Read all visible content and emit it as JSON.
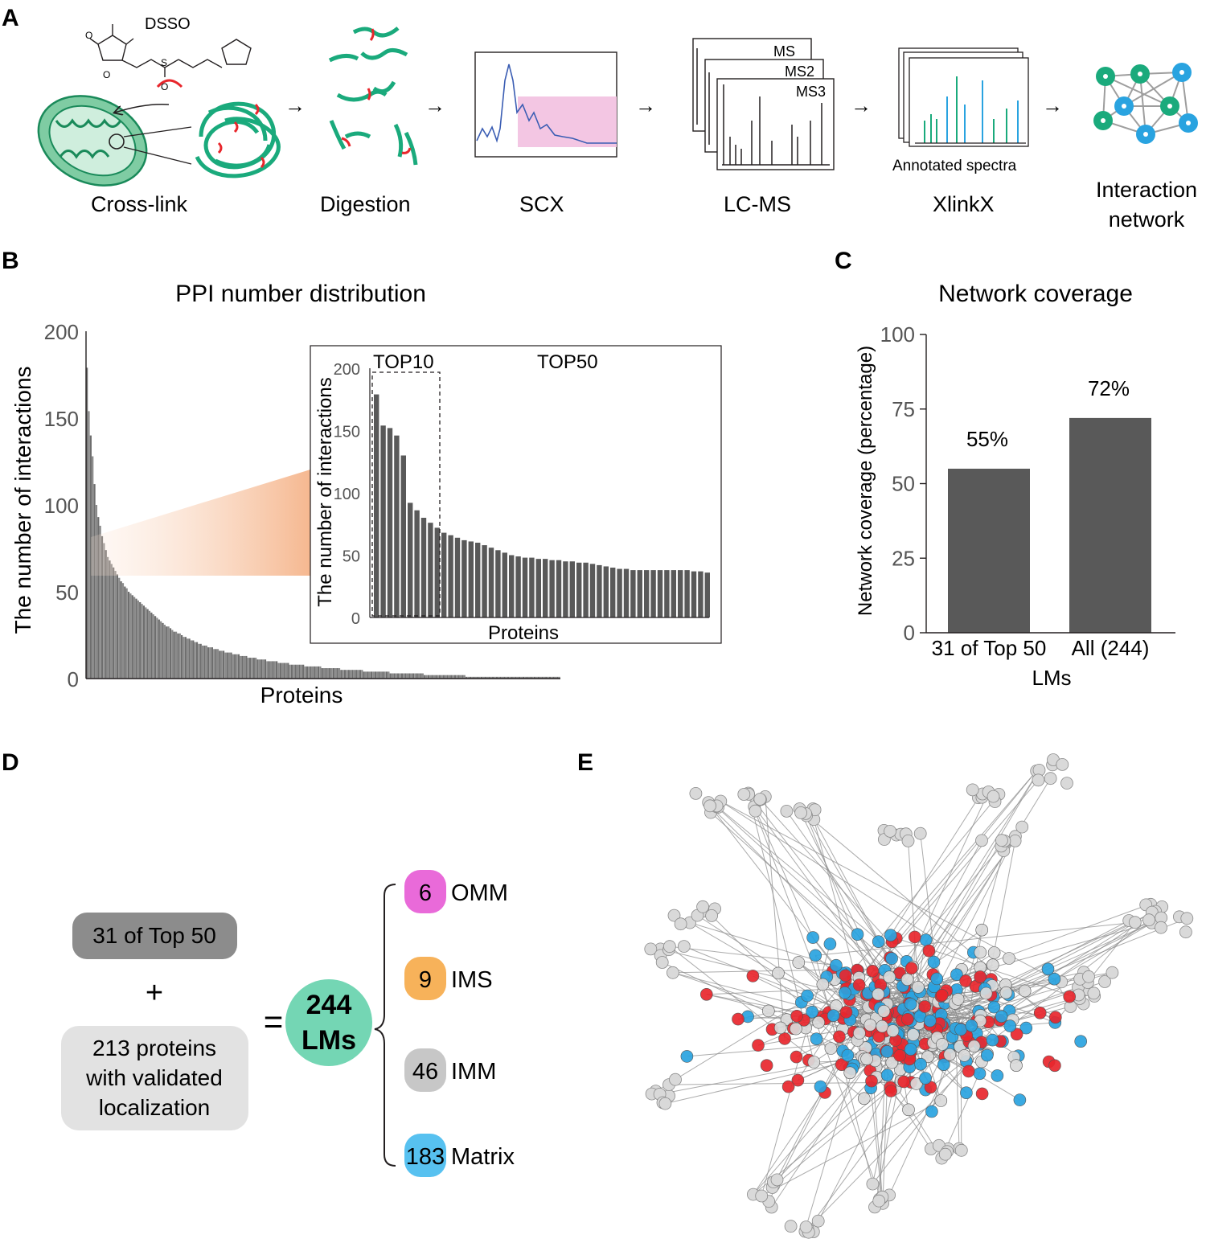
{
  "panels": {
    "a": "A",
    "b": "B",
    "c": "C",
    "d": "D",
    "e": "E"
  },
  "workflow": {
    "reagent": "DSSO",
    "steps": [
      "Cross-link",
      "Digestion",
      "SCX",
      "LC-MS",
      "XlinkX"
    ],
    "network_line1": "Interaction",
    "network_line2": "network",
    "ms_labels": [
      "MS",
      "MS2",
      "MS3"
    ],
    "annotated": "Annotated spectra",
    "arrow": "→"
  },
  "colors": {
    "green": "#1aaa7c",
    "blue": "#29a3e0",
    "red": "#e8262c",
    "grey": "#d9d9d9",
    "bar": "#595959",
    "pink": "#f3c6e3",
    "omm": "#e96ad9",
    "ims": "#f7b25a",
    "imm": "#c7c7c7",
    "matrix": "#57c1f0",
    "lm": "#74d6b4"
  },
  "chart_data": [
    {
      "type": "bar",
      "title": "PPI number distribution",
      "xlabel": "Proteins",
      "ylabel": "The number of interactions",
      "ylim": [
        0,
        200
      ],
      "yticks": [
        "0",
        "50",
        "100",
        "150",
        "200"
      ],
      "values": [
        179,
        154,
        140,
        128,
        112,
        100,
        93,
        88,
        82,
        78,
        74,
        70,
        68,
        66,
        64,
        62,
        60,
        58,
        56,
        55,
        53,
        52,
        50,
        49,
        48,
        47,
        46,
        45,
        44,
        43,
        42,
        41,
        40,
        39,
        38,
        37,
        36,
        35,
        34,
        33,
        32,
        31,
        30,
        30,
        29,
        28,
        27,
        27,
        26,
        26,
        25,
        24,
        24,
        23,
        23,
        22,
        22,
        21,
        21,
        20,
        20,
        19,
        19,
        19,
        18,
        18,
        18,
        17,
        17,
        17,
        16,
        16,
        16,
        15,
        15,
        15,
        15,
        14,
        14,
        14,
        14,
        13,
        13,
        13,
        13,
        12,
        12,
        12,
        12,
        12,
        11,
        11,
        11,
        11,
        11,
        10,
        10,
        10,
        10,
        10,
        10,
        9,
        9,
        9,
        9,
        9,
        9,
        8,
        8,
        8,
        8,
        8,
        8,
        8,
        8,
        7,
        7,
        7,
        7,
        7,
        7,
        7,
        7,
        7,
        6,
        6,
        6,
        6,
        6,
        6,
        6,
        6,
        6,
        6,
        5,
        5,
        5,
        5,
        5,
        5,
        5,
        5,
        5,
        5,
        5,
        5,
        4,
        4,
        4,
        4,
        4,
        4,
        4,
        4,
        4,
        4,
        4,
        4,
        4,
        4,
        3,
        3,
        3,
        3,
        3,
        3,
        3,
        3,
        3,
        3,
        3,
        3,
        3,
        3,
        3,
        3,
        3,
        3,
        2,
        2,
        2,
        2,
        2,
        2,
        2,
        2,
        2,
        2,
        2,
        2,
        2,
        2,
        2,
        2,
        2,
        2,
        2,
        2,
        2,
        2,
        1,
        1,
        1,
        1,
        1,
        1,
        1,
        1,
        1,
        1,
        1,
        1,
        1,
        1,
        1,
        1,
        1,
        1,
        1,
        1,
        1,
        1,
        1,
        1,
        1,
        1,
        1,
        1,
        1,
        1,
        1,
        1,
        1,
        1,
        1,
        1,
        1,
        1,
        1,
        1,
        1,
        1,
        1,
        1,
        1,
        1,
        1,
        1,
        1,
        1
      ],
      "inset": {
        "xlabel": "Proteins",
        "ylabel": "The number of interactions",
        "ylim": [
          0,
          200
        ],
        "yticks": [
          "0",
          "50",
          "100",
          "150",
          "200"
        ],
        "top10_label": "TOP10",
        "top50_label": "TOP50",
        "values": [
          179,
          154,
          152,
          146,
          130,
          92,
          86,
          80,
          76,
          72,
          68,
          66,
          64,
          62,
          61,
          60,
          58,
          56,
          54,
          52,
          50,
          49,
          48,
          48,
          47,
          47,
          46,
          46,
          45,
          45,
          44,
          44,
          43,
          42,
          41,
          40,
          39,
          39,
          38,
          38,
          38,
          38,
          38,
          38,
          38,
          38,
          38,
          37,
          37,
          36
        ]
      }
    },
    {
      "type": "bar",
      "title": "Network coverage",
      "xlabel": "LMs",
      "ylabel": "Network coverage (percentage)",
      "ylim": [
        0,
        100
      ],
      "yticks": [
        "0",
        "25",
        "50",
        "75",
        "100"
      ],
      "categories": [
        "31 of Top 50",
        "All (244)"
      ],
      "values": [
        55,
        72
      ],
      "value_labels": [
        "55%",
        "72%"
      ]
    }
  ],
  "summary": {
    "top50": "31 of Top 50",
    "plus": "+",
    "validated_line1": "213 proteins",
    "validated_line2": "with validated",
    "validated_line3": "localization",
    "equals": "=",
    "lm_count": "244",
    "lm_label": "LMs",
    "locations": [
      {
        "count": "6",
        "name": "OMM"
      },
      {
        "count": "9",
        "name": "IMS"
      },
      {
        "count": "46",
        "name": "IMM"
      },
      {
        "count": "183",
        "name": "Matrix"
      }
    ]
  }
}
